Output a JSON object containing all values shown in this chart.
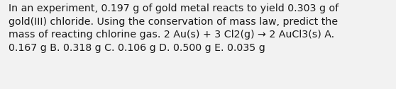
{
  "text": "In an experiment, 0.197 g of gold metal reacts to yield 0.303 g of\ngold(III) chloride. Using the conservation of mass law, predict the\nmass of reacting chlorine gas. 2 Au(s) + 3 Cl2(g) → 2 AuCl3(s) A.\n0.167 g B. 0.318 g C. 0.106 g D. 0.500 g E. 0.035 g",
  "background_color": "#f2f2f2",
  "text_color": "#1a1a1a",
  "font_size": 10.2,
  "fig_width": 5.58,
  "fig_height": 1.26,
  "dpi": 100
}
